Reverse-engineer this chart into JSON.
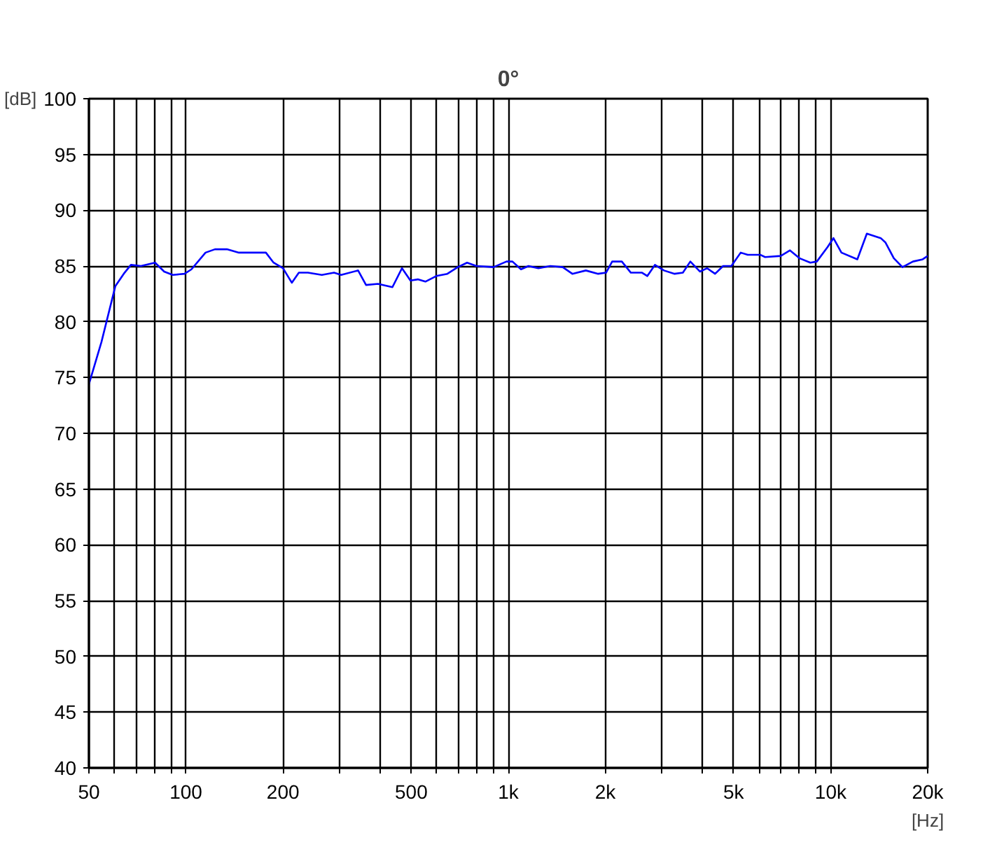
{
  "chart_data": {
    "type": "line",
    "title": "0°",
    "xlabel": "[Hz]",
    "ylabel": "[dB]",
    "log": "x",
    "grid": true,
    "marker": "none",
    "line_style": "solid",
    "xlim": [
      50,
      20000
    ],
    "ylim": [
      40,
      100
    ],
    "xticks": [
      50,
      {
        "value": 60,
        "label": null
      },
      {
        "value": 70,
        "label": null
      },
      {
        "value": 80,
        "label": null
      },
      {
        "value": 90,
        "label": null
      },
      100,
      200,
      {
        "value": 300,
        "label": null
      },
      {
        "value": 400,
        "label": null
      },
      500,
      {
        "value": 600,
        "label": null
      },
      {
        "value": 700,
        "label": null
      },
      {
        "value": 800,
        "label": null
      },
      {
        "value": 900,
        "label": null
      },
      {
        "value": 1000,
        "label": "1k"
      },
      {
        "value": 2000,
        "label": "2k"
      },
      {
        "value": 3000,
        "label": null
      },
      {
        "value": 4000,
        "label": null
      },
      {
        "value": 5000,
        "label": "5k"
      },
      {
        "value": 6000,
        "label": null
      },
      {
        "value": 7000,
        "label": null
      },
      {
        "value": 8000,
        "label": null
      },
      {
        "value": 9000,
        "label": null
      },
      {
        "value": 10000,
        "label": "10k"
      },
      {
        "value": 20000,
        "label": "20k"
      }
    ],
    "yticks": [
      40,
      45,
      50,
      55,
      60,
      65,
      70,
      75,
      80,
      85,
      90,
      95,
      100
    ],
    "series": [
      {
        "color": "#0000ff",
        "x": [
          50,
          54.7,
          60.4,
          64.5,
          67.5,
          72.5,
          80.2,
          85.6,
          91,
          99,
          104,
          115,
          123,
          134,
          146,
          177,
          187,
          200,
          213,
          224,
          239,
          264,
          288,
          303,
          342,
          362,
          394,
          437,
          468,
          497,
          524,
          553,
          598,
          647,
          697,
          745,
          796,
          900,
          987,
          1030,
          1095,
          1155,
          1240,
          1350,
          1475,
          1580,
          1740,
          1900,
          2010,
          2100,
          2250,
          2400,
          2600,
          2700,
          2850,
          3040,
          3280,
          3480,
          3670,
          3930,
          4140,
          4380,
          4640,
          4920,
          5260,
          5530,
          6060,
          6260,
          7000,
          7480,
          8000,
          8650,
          9060,
          9780,
          10200,
          10800,
          12100,
          12950,
          14300,
          14800,
          15700,
          16700,
          18000,
          19300,
          20000
        ],
        "values": [
          74.4,
          78.2,
          83.2,
          84.4,
          85.1,
          85.0,
          85.3,
          84.5,
          84.2,
          84.3,
          84.7,
          86.2,
          86.5,
          86.5,
          86.2,
          86.2,
          85.3,
          84.8,
          83.5,
          84.4,
          84.4,
          84.2,
          84.4,
          84.2,
          84.6,
          83.3,
          83.4,
          83.1,
          84.8,
          83.7,
          83.8,
          83.6,
          84.1,
          84.3,
          84.9,
          85.3,
          85.0,
          84.9,
          85.4,
          85.4,
          84.7,
          85.0,
          84.8,
          85.0,
          84.9,
          84.3,
          84.6,
          84.3,
          84.4,
          85.4,
          85.4,
          84.4,
          84.4,
          84.1,
          85.1,
          84.6,
          84.3,
          84.4,
          85.4,
          84.5,
          84.8,
          84.3,
          85.0,
          85.0,
          86.2,
          86.0,
          86.0,
          85.8,
          85.9,
          86.4,
          85.7,
          85.3,
          85.4,
          86.7,
          87.5,
          86.2,
          85.6,
          87.9,
          87.5,
          87.1,
          85.7,
          84.9,
          85.4,
          85.6,
          85.9
        ]
      }
    ]
  }
}
